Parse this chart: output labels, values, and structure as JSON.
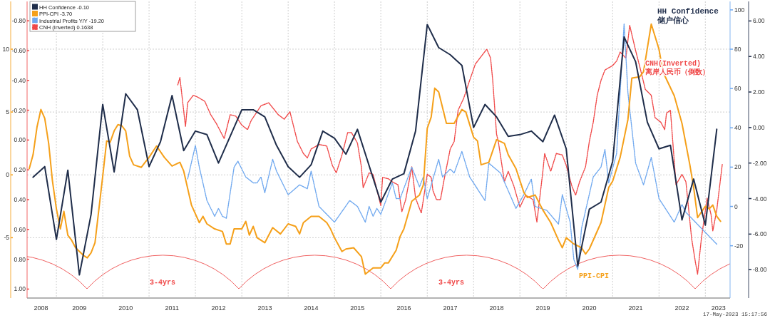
{
  "chart_data": [
    {
      "type": "line",
      "legend": "top left",
      "tick_labels": "y",
      "xlim": [
        "2008-05-15",
        "2023-07-15"
      ],
      "ylim": [
        -9.6,
        7.1
      ],
      "yticks": [
        {
          "value": 6,
          "label": "6.00"
        },
        {
          "value": 4,
          "label": "4.00"
        },
        {
          "value": 2,
          "label": "2.00"
        },
        {
          "value": 0,
          "label": "0.00"
        },
        {
          "value": -2,
          "label": "-2.00"
        },
        {
          "value": -4,
          "label": "-4.00"
        },
        {
          "value": -6,
          "label": "-6.00"
        },
        {
          "value": -8,
          "label": "-8.00"
        }
      ],
      "series": [
        {
          "name": "HH Confidence -0.10",
          "color": "#1f2d4a",
          "line_style": "solid",
          "x": [
            "2008-07",
            "2008-10",
            "2009-01",
            "2009-04",
            "2009-07",
            "2009-10",
            "2010-01",
            "2010-04",
            "2010-07",
            "2010-10",
            "2011-01",
            "2011-04",
            "2011-07",
            "2011-10",
            "2012-01",
            "2012-04",
            "2012-07",
            "2013-01",
            "2013-04",
            "2013-07",
            "2013-10",
            "2014-01",
            "2014-04",
            "2014-07",
            "2014-10",
            "2015-01",
            "2015-04",
            "2015-07",
            "2016-01",
            "2016-04",
            "2016-07",
            "2016-10",
            "2017-01",
            "2017-04",
            "2017-07",
            "2017-10",
            "2018-01",
            "2018-04",
            "2018-07",
            "2018-10",
            "2019-01",
            "2019-04",
            "2019-07",
            "2019-10",
            "2020-01",
            "2020-04",
            "2020-07",
            "2020-10",
            "2021-01",
            "2021-04",
            "2021-07",
            "2021-10",
            "2022-01",
            "2022-04",
            "2022-07",
            "2022-10",
            "2023-01",
            "2023-04"
          ],
          "values": [
            -2.8,
            -2.2,
            -6.3,
            -2.4,
            -8.3,
            -4.9,
            1.3,
            -2.5,
            1.9,
            1.0,
            -2.2,
            -0.8,
            1.8,
            -1.3,
            -0.2,
            -0.4,
            -2.0,
            1.0,
            1.0,
            0.6,
            -1.0,
            -2.2,
            -2.8,
            -2.1,
            -0.2,
            -0.6,
            -1.5,
            -0.1,
            -4.2,
            -2.9,
            -2.6,
            -0.2,
            5.8,
            4.5,
            4.1,
            3.5,
            0.0,
            1.3,
            0.6,
            -0.5,
            -0.4,
            -0.2,
            -0.8,
            0.7,
            -1.2,
            -7.8,
            -4.6,
            -4.2,
            -1.9,
            5.1,
            3.7,
            0.3,
            -1.2,
            -1.0,
            -5.2,
            -2.9,
            -5.5,
            -0.1
          ]
        }
      ]
    },
    {
      "type": "line",
      "legend": "top left",
      "grid": true,
      "xlim": [
        "2008-05-15",
        "2023-07-15"
      ],
      "xticks": [
        {
          "value": "2008-09-01",
          "label": "2008"
        },
        {
          "value": "2009-01-01",
          "label": null
        },
        {
          "value": "2009-07-01",
          "label": "2009"
        },
        {
          "value": "2010-01-01",
          "label": null
        },
        {
          "value": "2010-07-01",
          "label": "2010"
        },
        {
          "value": "2011-01-01",
          "label": null
        },
        {
          "value": "2011-07-01",
          "label": "2011"
        },
        {
          "value": "2012-01-01",
          "label": null
        },
        {
          "value": "2012-07-01",
          "label": "2012"
        },
        {
          "value": "2013-01-01",
          "label": null
        },
        {
          "value": "2013-07-01",
          "label": "2013"
        },
        {
          "value": "2014-01-01",
          "label": null
        },
        {
          "value": "2014-07-01",
          "label": "2014"
        },
        {
          "value": "2015-01-01",
          "label": null
        },
        {
          "value": "2015-07-01",
          "label": "2015"
        },
        {
          "value": "2016-01-01",
          "label": null
        },
        {
          "value": "2016-07-01",
          "label": "2016"
        },
        {
          "value": "2017-01-01",
          "label": null
        },
        {
          "value": "2017-07-01",
          "label": "2017"
        },
        {
          "value": "2018-01-01",
          "label": null
        },
        {
          "value": "2018-07-01",
          "label": "2018"
        },
        {
          "value": "2019-01-01",
          "label": null
        },
        {
          "value": "2019-07-01",
          "label": "2019"
        },
        {
          "value": "2020-01-01",
          "label": null
        },
        {
          "value": "2020-07-01",
          "label": "2020"
        },
        {
          "value": "2021-01-01",
          "label": null
        },
        {
          "value": "2021-07-01",
          "label": "2021"
        },
        {
          "value": "2022-01-01",
          "label": null
        },
        {
          "value": "2022-07-01",
          "label": "2022"
        },
        {
          "value": "2023-01-01",
          "label": null
        },
        {
          "value": "2023-04-15",
          "label": "2023"
        }
      ],
      "ylim": [
        -9.8,
        13.8
      ],
      "yticks": [
        10,
        5,
        0,
        -5
      ],
      "y2lim": [
        1.06,
        -0.93
      ],
      "y2ticks": [
        {
          "value": -0.8,
          "label": "-0.80"
        },
        {
          "value": -0.6,
          "label": "-0.60"
        },
        {
          "value": -0.4,
          "label": "-0.40"
        },
        {
          "value": -0.2,
          "label": "-0.20"
        },
        {
          "value": 0,
          "label": "0.00"
        },
        {
          "value": 0.2,
          "label": "0.20"
        },
        {
          "value": 0.4,
          "label": "0.40"
        },
        {
          "value": 0.6,
          "label": "0.60"
        },
        {
          "value": 0.8,
          "label": "0.80"
        },
        {
          "value": 1,
          "label": "1.00"
        }
      ],
      "y3lim": [
        -46.6,
        104.3
      ],
      "y3ticks": [
        100,
        80,
        60,
        40,
        20,
        0,
        -20
      ],
      "series": [
        {
          "name": "PPI-CPI -3.70",
          "color": "#f5a01a",
          "axis": "y",
          "line_style": "solid",
          "x": [
            "2008-06",
            "2008-07",
            "2008-08",
            "2008-09",
            "2008-10",
            "2008-11",
            "2008-12",
            "2009-01",
            "2009-02",
            "2009-03",
            "2009-04",
            "2009-05",
            "2009-06",
            "2009-08",
            "2009-09",
            "2009-10",
            "2009-11",
            "2010-01",
            "2010-02",
            "2010-03",
            "2010-04",
            "2010-05",
            "2010-06",
            "2010-07",
            "2010-08",
            "2010-09",
            "2010-11",
            "2010-12",
            "2011-01",
            "2011-03",
            "2011-05",
            "2011-07",
            "2011-09",
            "2011-10",
            "2011-12",
            "2012-02",
            "2012-03",
            "2012-04",
            "2012-06",
            "2012-08",
            "2012-09",
            "2012-10",
            "2012-11",
            "2013-01",
            "2013-02",
            "2013-03",
            "2013-04",
            "2013-05",
            "2013-07",
            "2013-09",
            "2013-11",
            "2014-01",
            "2014-03",
            "2014-04",
            "2014-05",
            "2014-07",
            "2014-09",
            "2014-11",
            "2014-12",
            "2015-01",
            "2015-03",
            "2015-04",
            "2015-06",
            "2015-08",
            "2015-09",
            "2015-11",
            "2016-01",
            "2016-02",
            "2016-03",
            "2016-05",
            "2016-06",
            "2016-07",
            "2016-09",
            "2016-11",
            "2016-12",
            "2017-01",
            "2017-02",
            "2017-03",
            "2017-04",
            "2017-06",
            "2017-08",
            "2017-10",
            "2017-11",
            "2018-01",
            "2018-02",
            "2018-03",
            "2018-05",
            "2018-07",
            "2018-09",
            "2018-10",
            "2018-12",
            "2019-02",
            "2019-03",
            "2019-05",
            "2019-07",
            "2019-09",
            "2019-11",
            "2019-12",
            "2020-01",
            "2020-03",
            "2020-05",
            "2020-06",
            "2020-07",
            "2020-10",
            "2020-12",
            "2021-01",
            "2021-03",
            "2021-05",
            "2021-06",
            "2021-08",
            "2021-09",
            "2021-11",
            "2022-01",
            "2022-02",
            "2022-05",
            "2022-07",
            "2022-09",
            "2022-10",
            "2022-11",
            "2023-01",
            "2023-02",
            "2023-03",
            "2023-04",
            "2023-05"
          ],
          "values": [
            0.5,
            1.6,
            3.8,
            5.2,
            4.5,
            2.5,
            -0.5,
            -2.7,
            -4.3,
            -2.9,
            -4.8,
            -5.2,
            -5.8,
            -6.4,
            -6.6,
            -6.2,
            -5.4,
            -0.1,
            2.7,
            2.6,
            3.5,
            4.0,
            3.9,
            3.5,
            1.5,
            0.8,
            0.6,
            1.0,
            1.4,
            2.3,
            1.4,
            0.7,
            1.0,
            0.3,
            -2.4,
            -3.8,
            -3.3,
            -3.9,
            -4.3,
            -4.5,
            -5.5,
            -5.5,
            -4.3,
            -4.3,
            -3.7,
            -4.8,
            -4.1,
            -5.0,
            -5.4,
            -4.2,
            -4.7,
            -3.9,
            -4.1,
            -4.7,
            -3.8,
            -3.3,
            -3.3,
            -3.8,
            -4.3,
            -5.0,
            -6.1,
            -5.9,
            -5.8,
            -6.5,
            -7.9,
            -7.4,
            -7.4,
            -7.0,
            -7.0,
            -6.0,
            -4.9,
            -4.3,
            -2.1,
            -1.6,
            -0.8,
            3.7,
            4.6,
            6.9,
            6.6,
            4.1,
            4.1,
            5.2,
            5.0,
            3.0,
            2.7,
            0.8,
            1.0,
            2.8,
            2.5,
            1.6,
            0.5,
            -1.4,
            -1.8,
            -1.6,
            -2.8,
            -3.8,
            -5.2,
            -5.8,
            -5.0,
            -5.5,
            -5.8,
            -6.3,
            -5.9,
            -3.8,
            -1.0,
            -0.5,
            1.4,
            4.4,
            7.7,
            7.8,
            8.2,
            12.0,
            10.0,
            8.2,
            6.3,
            4.1,
            0.8,
            -1.0,
            -3.4,
            -2.5,
            -2.7,
            -2.4,
            -3.3,
            -3.7
          ]
        },
        {
          "name": "Industrial Profits Y/Y -19.20",
          "color": "#6fa8ef",
          "axis": "y3",
          "line_style": "dotted",
          "x": [
            "2011-11",
            "2012-01",
            "2012-02",
            "2012-04",
            "2012-06",
            "2012-07",
            "2012-08",
            "2012-09",
            "2012-11",
            "2012-12",
            "2013-02",
            "2013-04",
            "2013-05",
            "2013-06",
            "2013-07",
            "2013-09",
            "2013-10",
            "2014-01",
            "2014-04",
            "2014-06",
            "2014-07",
            "2014-09",
            "2015-01",
            "2015-05",
            "2015-07",
            "2015-09",
            "2015-10",
            "2015-11",
            "2015-12",
            "2016-01",
            "2016-04",
            "2016-05",
            "2016-06",
            "2016-09",
            "2016-11",
            "2016-12",
            "2017-01",
            "2017-04",
            "2017-05",
            "2017-07",
            "2017-08",
            "2017-10",
            "2017-12",
            "2018-04",
            "2018-05",
            "2018-08",
            "2018-12",
            "2019-02",
            "2019-04",
            "2019-05",
            "2019-08",
            "2019-11",
            "2019-12",
            "2020-02",
            "2020-03",
            "2020-04",
            "2020-05",
            "2020-08",
            "2020-10",
            "2020-11",
            "2020-12",
            "2021-02",
            "2021-04",
            "2021-05",
            "2021-07",
            "2021-09",
            "2021-11",
            "2022-01",
            "2022-05",
            "2022-07",
            "2022-08",
            "2023-04"
          ],
          "values": [
            14,
            31,
            20,
            3,
            -5,
            -1,
            -5,
            -6,
            20,
            23,
            15,
            12,
            12,
            15,
            7,
            24,
            18,
            6,
            11,
            9,
            18,
            0,
            -8,
            3,
            0,
            -8,
            0,
            -5,
            -1,
            -4,
            12,
            4,
            4,
            20,
            10,
            15,
            4,
            24,
            15,
            19,
            17,
            28,
            15,
            3,
            22,
            17,
            -1,
            6,
            14,
            0,
            -2,
            -9,
            6,
            -8,
            -27,
            -32,
            -11,
            15,
            20,
            29,
            12,
            27,
            93,
            58,
            22,
            11,
            25,
            4,
            -8,
            1,
            -3,
            -19.2
          ]
        },
        {
          "name": "CNH (Inverted) 0.1638",
          "color": "#f04848",
          "axis": "y2",
          "line_style": "dotted",
          "x": [
            "2011-08-15",
            "2011-09-01",
            "2011-10-15",
            "2011-11-01",
            "2011-12-15",
            "2012-01-15",
            "2012-03-15",
            "2012-05-01",
            "2012-06-15",
            "2012-08-15",
            "2012-10-01",
            "2012-11-15",
            "2013-01-01",
            "2013-02-15",
            "2013-03-15",
            "2013-06-01",
            "2013-08-01",
            "2013-10-15",
            "2013-12-01",
            "2014-01-15",
            "2014-03-15",
            "2014-05-01",
            "2014-06-01",
            "2014-07-01",
            "2014-09-01",
            "2014-11-01",
            "2014-12-15",
            "2015-01-15",
            "2015-03-01",
            "2015-04-15",
            "2015-05-15",
            "2015-07-01",
            "2015-08-01",
            "2015-08-15",
            "2015-10-01",
            "2015-11-01",
            "2016-01-01",
            "2016-01-15",
            "2016-03-01",
            "2016-04-01",
            "2016-05-15",
            "2016-06-15",
            "2016-07-15",
            "2016-09-01",
            "2016-10-01",
            "2016-11-15",
            "2017-01-01",
            "2017-02-01",
            "2017-02-15",
            "2017-03-15",
            "2017-04-15",
            "2017-05-15",
            "2017-07-01",
            "2017-08-01",
            "2017-09-01",
            "2017-10-15",
            "2017-12-01",
            "2018-01-15",
            "2018-03-01",
            "2018-04-15",
            "2018-05-15",
            "2018-06-01",
            "2018-07-01",
            "2018-07-15",
            "2018-09-01",
            "2018-10-01",
            "2018-11-15",
            "2019-01-01",
            "2019-02-15",
            "2019-04-15",
            "2019-05-15",
            "2019-07-01",
            "2019-07-15",
            "2019-09-01",
            "2019-10-15",
            "2019-12-01",
            "2020-01-01",
            "2020-02-15",
            "2020-03-15",
            "2020-04-15",
            "2020-06-01",
            "2020-07-01",
            "2020-08-01",
            "2020-09-01",
            "2020-10-01",
            "2020-11-01",
            "2021-01-01",
            "2021-02-01",
            "2021-03-01",
            "2021-04-15",
            "2021-05-15",
            "2021-07-01",
            "2021-08-15",
            "2021-09-15",
            "2021-11-01",
            "2021-12-01",
            "2022-01-15",
            "2022-02-15",
            "2022-03-01",
            "2022-04-01",
            "2022-05-15",
            "2022-07-01",
            "2022-08-01",
            "2022-09-15",
            "2022-10-15",
            "2022-11-01",
            "2022-12-01",
            "2023-01-15",
            "2023-02-15",
            "2023-03-01",
            "2023-04-01",
            "2023-05-15"
          ],
          "values": [
            -0.37,
            -0.42,
            -0.09,
            -0.25,
            -0.3,
            -0.29,
            -0.26,
            -0.17,
            -0.11,
            -0.01,
            -0.17,
            -0.16,
            -0.1,
            -0.07,
            -0.13,
            -0.23,
            -0.25,
            -0.17,
            -0.14,
            -0.19,
            0.01,
            0.09,
            0.12,
            0.06,
            0.03,
            0.04,
            0.17,
            0.22,
            0.1,
            -0.05,
            -0.05,
            0.02,
            0.18,
            0.32,
            0.22,
            0.23,
            0.44,
            0.25,
            0.26,
            0.28,
            0.3,
            0.48,
            0.4,
            0.18,
            0.39,
            0.49,
            0.23,
            0.25,
            0.34,
            0.4,
            0.4,
            0.26,
            0.06,
            0.01,
            -0.2,
            -0.28,
            -0.4,
            -0.51,
            -0.56,
            -0.61,
            -0.55,
            -0.4,
            -0.04,
            0.01,
            0.28,
            0.21,
            0.31,
            0.45,
            0.37,
            0.4,
            0.55,
            0.21,
            0.09,
            0.21,
            0.09,
            0.1,
            0.17,
            0.31,
            0.37,
            0.28,
            0.18,
            0.01,
            -0.12,
            -0.3,
            -0.4,
            -0.47,
            -0.5,
            -0.53,
            -0.59,
            -0.55,
            -0.77,
            -0.6,
            -0.45,
            -0.34,
            -0.3,
            -0.15,
            -0.12,
            -0.07,
            -0.18,
            -0.2,
            0.3,
            0.23,
            0.28,
            0.66,
            0.82,
            0.9,
            0.66,
            0.39,
            0.5,
            0.61,
            0.47,
            0.16
          ]
        }
      ],
      "annotations": [
        "HH Confidence\n储户信心",
        "CNH(Inverted)\n离岸人民币（倒数）",
        "3-4yrs",
        "3-4yrs",
        "PPI-CPI",
        "17-May-2023 15:17:56"
      ]
    }
  ]
}
